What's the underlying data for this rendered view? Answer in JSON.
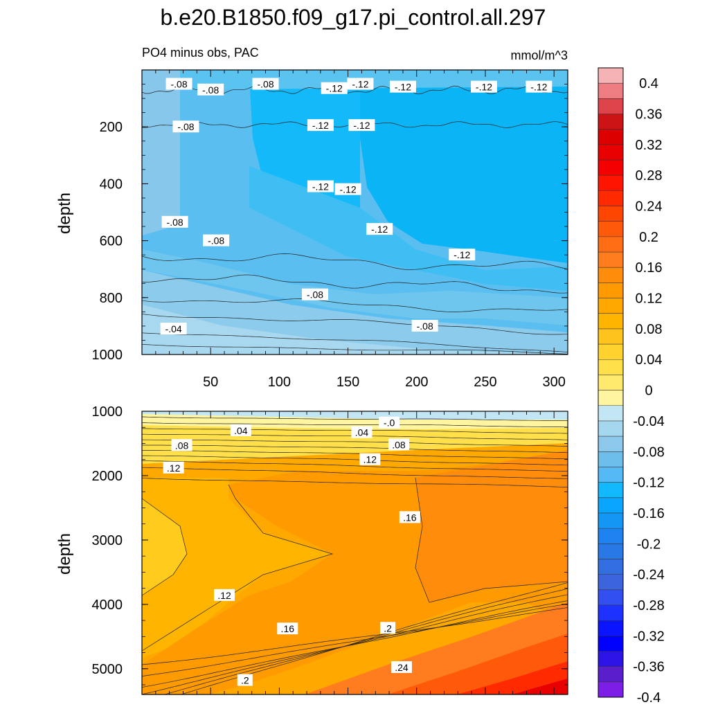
{
  "chart_data": [
    {
      "type": "contour",
      "panel": "upper",
      "title": "b.e20.B1850.f09_g17.pi_control.all.297",
      "subtitle_left": "PO4 minus obs, PAC",
      "subtitle_right": "mmol/m^3",
      "xlabel": "",
      "ylabel": "depth",
      "xlim": [
        0,
        310
      ],
      "ylim": [
        1000,
        0
      ],
      "y_reversed": true,
      "x_ticks": [
        50,
        100,
        150,
        200,
        250,
        300
      ],
      "y_ticks": [
        200,
        400,
        600,
        800,
        1000
      ],
      "z_levels": [
        -0.12,
        -0.1,
        -0.08,
        -0.06,
        -0.04,
        -0.02
      ],
      "contour_labels": [
        {
          "text": "-.08",
          "x": 27,
          "y": 50
        },
        {
          "text": "-.08",
          "x": 50,
          "y": 70
        },
        {
          "text": "-.08",
          "x": 90,
          "y": 50
        },
        {
          "text": "-.12",
          "x": 140,
          "y": 65
        },
        {
          "text": "-.12",
          "x": 159,
          "y": 50
        },
        {
          "text": "-.12",
          "x": 190,
          "y": 60
        },
        {
          "text": "-.12",
          "x": 249,
          "y": 60
        },
        {
          "text": "-.12",
          "x": 289,
          "y": 60
        },
        {
          "text": "-.08",
          "x": 32,
          "y": 200
        },
        {
          "text": "-.12",
          "x": 130,
          "y": 195
        },
        {
          "text": "-.12",
          "x": 160,
          "y": 195
        },
        {
          "text": "-.12",
          "x": 130,
          "y": 410
        },
        {
          "text": "-.12",
          "x": 150,
          "y": 420
        },
        {
          "text": "-.08",
          "x": 24,
          "y": 535
        },
        {
          "text": "-.08",
          "x": 54,
          "y": 600
        },
        {
          "text": "-.12",
          "x": 173,
          "y": 560
        },
        {
          "text": "-.12",
          "x": 233,
          "y": 650
        },
        {
          "text": "-.08",
          "x": 126,
          "y": 790
        },
        {
          "text": "-.04",
          "x": 23,
          "y": 910
        },
        {
          "text": "-.08",
          "x": 206,
          "y": 900
        }
      ]
    },
    {
      "type": "contour",
      "panel": "lower",
      "xlabel": "",
      "ylabel": "depth",
      "xlim": [
        0,
        310
      ],
      "ylim": [
        1000,
        5400
      ],
      "y_reversed": true,
      "y_ticks": [
        1000,
        2000,
        3000,
        4000,
        5000
      ],
      "z_levels": [
        0.0,
        0.02,
        0.04,
        0.06,
        0.08,
        0.1,
        0.12,
        0.14,
        0.16,
        0.18,
        0.2,
        0.22,
        0.24,
        0.26
      ],
      "contour_labels": [
        {
          "text": ".04",
          "x": 72,
          "y": 1300
        },
        {
          "text": "-.0",
          "x": 180,
          "y": 1180
        },
        {
          "text": ".04",
          "x": 160,
          "y": 1330
        },
        {
          "text": ".08",
          "x": 29,
          "y": 1530
        },
        {
          "text": ".08",
          "x": 187,
          "y": 1520
        },
        {
          "text": ".12",
          "x": 23,
          "y": 1880
        },
        {
          "text": ".12",
          "x": 166,
          "y": 1750
        },
        {
          "text": ".16",
          "x": 195,
          "y": 2650
        },
        {
          "text": ".12",
          "x": 60,
          "y": 3860
        },
        {
          "text": ".16",
          "x": 106,
          "y": 4380
        },
        {
          "text": ".2",
          "x": 179,
          "y": 4370
        },
        {
          "text": ".24",
          "x": 189,
          "y": 4980
        },
        {
          "text": ".2",
          "x": 75,
          "y": 5180
        }
      ]
    },
    {
      "type": "colorbar",
      "labels": [
        "0.4",
        "0.36",
        "0.32",
        "0.28",
        "0.24",
        "0.2",
        "0.16",
        "0.12",
        "0.08",
        "0.04",
        "0",
        "-0.04",
        "-0.08",
        "-0.12",
        "-0.16",
        "-0.2",
        "-0.24",
        "-0.28",
        "-0.32",
        "-0.36",
        "-0.4"
      ],
      "colors": [
        "#f5b3b6",
        "#ee7d82",
        "#e0444b",
        "#cc1416",
        "#dc0000",
        "#e80000",
        "#f40000",
        "#ff1400",
        "#ff2a00",
        "#ff4600",
        "#ff5a0a",
        "#ff6e14",
        "#ff7d1e",
        "#ff8c0a",
        "#ff9a00",
        "#ffa800",
        "#ffb400",
        "#ffc31e",
        "#ffd22d",
        "#ffe04b",
        "#ffea6e",
        "#fff5a0",
        "#c3e6f5",
        "#a5d7ee",
        "#8cc8eb",
        "#6ebeeb",
        "#55b9f5",
        "#12b9ff",
        "#0aa5ff",
        "#1496f5",
        "#1e82f0",
        "#2878e6",
        "#326ee0",
        "#3c64dc",
        "#3250f0",
        "#1e32ff",
        "#0a14ff",
        "#0000ff",
        "#2d14e6",
        "#5a1ecd",
        "#7d1ee6"
      ]
    }
  ]
}
